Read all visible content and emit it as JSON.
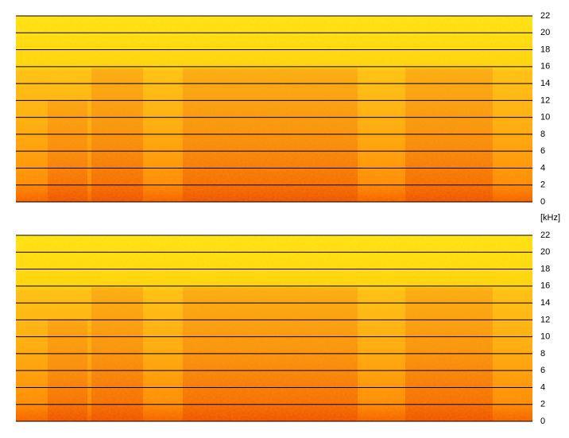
{
  "unit_label": "[kHz]",
  "panels": [
    {
      "ylim": [
        0,
        22
      ],
      "yticks": [
        0,
        2,
        4,
        6,
        8,
        10,
        12,
        14,
        16,
        18,
        20,
        22
      ]
    },
    {
      "ylim": [
        0,
        22
      ],
      "yticks": [
        0,
        2,
        4,
        6,
        8,
        10,
        12,
        14,
        16,
        18,
        20,
        22
      ]
    }
  ]
}
